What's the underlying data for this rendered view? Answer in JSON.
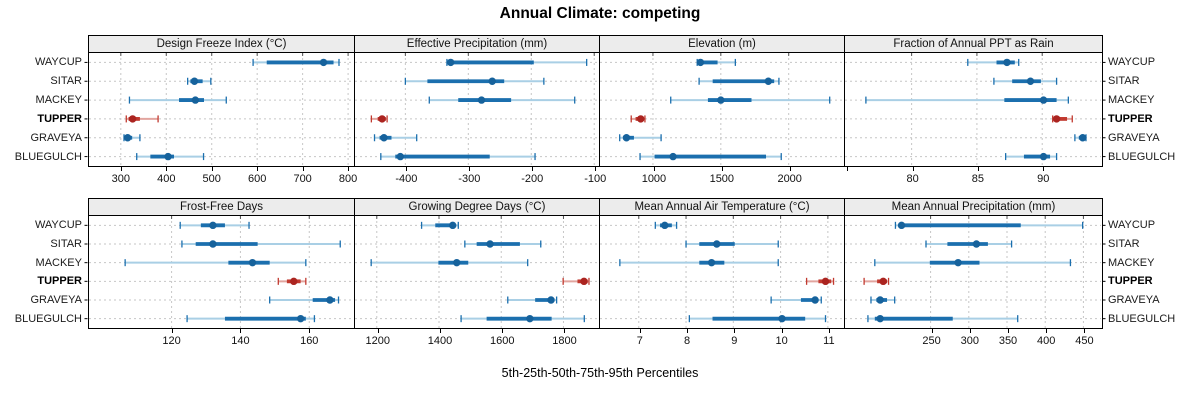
{
  "title": "Annual Climate: competing",
  "caption": "5th-25th-50th-75th-95th Percentiles",
  "colors": {
    "series_main": "#1b6fae",
    "series_light": "#a9cfe5",
    "series_dot": "#16629c",
    "highlight_main": "#c1392f",
    "highlight_light": "#e2a59f",
    "highlight_dot": "#ab2420",
    "grid": "#c6c6c6",
    "strip_bg": "#ececec",
    "border": "#000000"
  },
  "chart_data": {
    "type": "trellis-dotplot",
    "rows": 2,
    "cols": 4,
    "legend_position": "none",
    "grid": "dashed",
    "sites": [
      "WAYCUP",
      "SITAR",
      "MACKEY",
      "TUPPER",
      "GRAVEYA",
      "BLUEGULCH"
    ],
    "highlight_site": "TUPPER",
    "percentile_labels": [
      "5th",
      "25th",
      "50th",
      "75th",
      "95th"
    ],
    "panels": [
      {
        "title": "Design Freeze Index (°C)",
        "xlim": [
          230,
          813
        ],
        "ticks": [
          300,
          400,
          500,
          600,
          700,
          800
        ],
        "tick_labels": [
          "300",
          "400",
          "500",
          "600",
          "700",
          "800"
        ],
        "minor_ticks": [],
        "values": [
          [
            591,
            621,
            746,
            768,
            780
          ],
          [
            447,
            453,
            462,
            480,
            498
          ],
          [
            319,
            428,
            464,
            483,
            532
          ],
          [
            312,
            317,
            326,
            342,
            382
          ],
          [
            307,
            311,
            315,
            325,
            342
          ],
          [
            335,
            365,
            404,
            417,
            482
          ]
        ]
      },
      {
        "title": "Effective Precipitation (mm)",
        "xlim": [
          -480,
          -94
        ],
        "ticks": [
          -400,
          -300,
          -200,
          -100
        ],
        "tick_labels": [
          "-400",
          "-300",
          "-200",
          "-100"
        ],
        "minor_ticks": [],
        "values": [
          [
            -334,
            -330,
            -328,
            -196,
            -112
          ],
          [
            -400,
            -365,
            -262,
            -243,
            -180
          ],
          [
            -362,
            -316,
            -279,
            -232,
            -131
          ],
          [
            -454,
            -444,
            -437,
            -431,
            -429
          ],
          [
            -449,
            -441,
            -434,
            -422,
            -382
          ],
          [
            -439,
            -416,
            -408,
            -266,
            -194
          ]
        ]
      },
      {
        "title": "Elevation (m)",
        "xlim": [
          610,
          2400
        ],
        "ticks": [
          1000,
          1500,
          2000
        ],
        "tick_labels": [
          "1000",
          "1500",
          "2000"
        ],
        "minor_ticks": [],
        "values": [
          [
            1326,
            1338,
            1350,
            1476,
            1607
          ],
          [
            1340,
            1440,
            1850,
            1893,
            1928
          ],
          [
            1131,
            1405,
            1500,
            1726,
            2302
          ],
          [
            840,
            872,
            910,
            932,
            941
          ],
          [
            755,
            780,
            805,
            860,
            1060
          ],
          [
            905,
            1012,
            1148,
            1833,
            1945
          ]
        ]
      },
      {
        "title": "Fraction of Annual PPT as Rain",
        "xlim": [
          74.9,
          94.5
        ],
        "ticks": [
          80,
          85,
          90
        ],
        "tick_labels": [
          "80",
          "85",
          "90"
        ],
        "minor_ticks": [
          75
        ],
        "values": [
          [
            84.3,
            86.5,
            87.3,
            87.9,
            88.2
          ],
          [
            86.3,
            87.7,
            89.1,
            89.9,
            91.1
          ],
          [
            76.5,
            87.1,
            90.1,
            91.1,
            92.0
          ],
          [
            90.8,
            90.9,
            91.1,
            91.9,
            92.3
          ],
          [
            92.5,
            92.8,
            93.1,
            93.25,
            93.35
          ],
          [
            87.2,
            88.6,
            90.1,
            90.6,
            91.1
          ]
        ]
      },
      {
        "title": "Frost-Free Days",
        "xlim": [
          96,
          173
        ],
        "ticks": [
          120,
          140,
          160
        ],
        "tick_labels": [
          "120",
          "140",
          "160"
        ],
        "minor_ticks": [],
        "values": [
          [
            122.5,
            128.5,
            132,
            135.5,
            142.5
          ],
          [
            123,
            127,
            132,
            145,
            169
          ],
          [
            106.5,
            136.5,
            143.5,
            148.5,
            159
          ],
          [
            151,
            153.5,
            155.5,
            157.5,
            159
          ],
          [
            148.5,
            161,
            166,
            167.5,
            168.5
          ],
          [
            124.5,
            135.5,
            157.5,
            159,
            161.5
          ]
        ]
      },
      {
        "title": "Growing Degree Days (°C)",
        "xlim": [
          1130,
          1911
        ],
        "ticks": [
          1200,
          1400,
          1600,
          1800
        ],
        "tick_labels": [
          "1200",
          "1400",
          "1600",
          "1800"
        ],
        "minor_ticks": [],
        "values": [
          [
            1344,
            1388,
            1444,
            1452,
            1462
          ],
          [
            1483,
            1521,
            1564,
            1660,
            1727
          ],
          [
            1182,
            1398,
            1457,
            1494,
            1685
          ],
          [
            1799,
            1845,
            1866,
            1878,
            1882
          ],
          [
            1621,
            1709,
            1760,
            1771,
            1778
          ],
          [
            1471,
            1553,
            1692,
            1762,
            1867
          ]
        ]
      },
      {
        "title": "Mean Annual Air Temperature (°C)",
        "xlim": [
          6.18,
          11.32
        ],
        "ticks": [
          7,
          8,
          9,
          10,
          11
        ],
        "tick_labels": [
          "7",
          "8",
          "9",
          "10",
          "11"
        ],
        "minor_ticks": [],
        "values": [
          [
            7.35,
            7.45,
            7.55,
            7.7,
            7.8
          ],
          [
            8.0,
            8.28,
            8.65,
            9.03,
            9.95
          ],
          [
            6.6,
            8.28,
            8.54,
            8.81,
            9.95
          ],
          [
            10.55,
            10.8,
            10.95,
            11.07,
            11.12
          ],
          [
            9.8,
            10.43,
            10.73,
            10.78,
            10.86
          ],
          [
            8.07,
            8.56,
            10.03,
            10.52,
            10.95
          ]
        ]
      },
      {
        "title": "Mean Annual Precipitation (mm)",
        "xlim": [
          138,
          473
        ],
        "ticks": [
          250,
          300,
          350,
          400,
          450
        ],
        "tick_labels": [
          "250",
          "300",
          "350",
          "400",
          "450"
        ],
        "minor_ticks": [],
        "values": [
          [
            204,
            208,
            212,
            368,
            449
          ],
          [
            244,
            272,
            310,
            325,
            356
          ],
          [
            177,
            249,
            286,
            314,
            433
          ],
          [
            163,
            180,
            188,
            193,
            195
          ],
          [
            172,
            179,
            184,
            193,
            203
          ],
          [
            168,
            177,
            184,
            279,
            364
          ]
        ]
      }
    ]
  }
}
